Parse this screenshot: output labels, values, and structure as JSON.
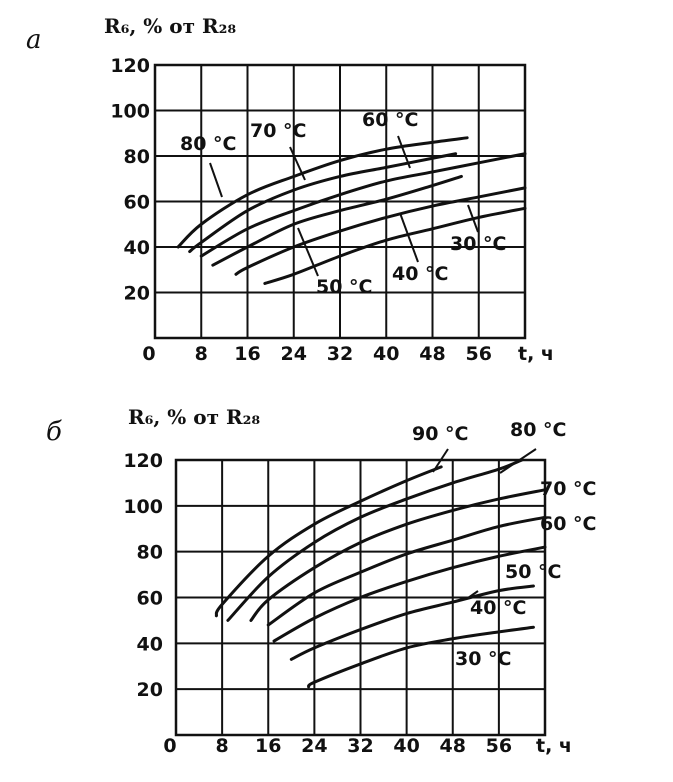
{
  "chart_data": [
    {
      "panel_label": "а",
      "type": "line",
      "title": "R₆, % от R₂₈",
      "xlabel": "t, ч",
      "ylabel": "R₆, % от R₂₈",
      "xlim": [
        0,
        64
      ],
      "ylim": [
        0,
        120
      ],
      "x_ticks": [
        0,
        8,
        16,
        24,
        32,
        40,
        48,
        56
      ],
      "y_ticks": [
        20,
        40,
        60,
        80,
        100,
        120
      ],
      "grid": true,
      "series": [
        {
          "name": "80 °C",
          "x": [
            4,
            8,
            16,
            24,
            32,
            40,
            48,
            54
          ],
          "y": [
            40,
            50,
            63,
            71,
            78,
            83,
            86,
            88
          ]
        },
        {
          "name": "70 °C",
          "x": [
            6,
            8,
            16,
            24,
            32,
            40,
            48,
            52
          ],
          "y": [
            38,
            42,
            56,
            65,
            71,
            75,
            79,
            81
          ]
        },
        {
          "name": "60 °C",
          "x": [
            8,
            16,
            24,
            32,
            40,
            48,
            56,
            64
          ],
          "y": [
            36,
            48,
            56,
            63,
            69,
            73,
            77,
            81
          ]
        },
        {
          "name": "50 °C",
          "x": [
            10,
            16,
            24,
            32,
            40,
            48,
            53
          ],
          "y": [
            32,
            40,
            50,
            56,
            61,
            67,
            71
          ]
        },
        {
          "name": "40 °C",
          "x": [
            14,
            16,
            24,
            32,
            40,
            48,
            56,
            64
          ],
          "y": [
            28,
            31,
            40,
            47,
            53,
            58,
            62,
            66
          ]
        },
        {
          "name": "30 °C",
          "x": [
            19,
            24,
            32,
            40,
            48,
            56,
            64
          ],
          "y": [
            24,
            28,
            36,
            43,
            48,
            53,
            57
          ]
        }
      ],
      "annotations": [
        "80 °C",
        "70 °C",
        "60 °C",
        "50 °C",
        "40 °C",
        "30 °C"
      ]
    },
    {
      "panel_label": "б",
      "type": "line",
      "title": "R₆, % от R₂₈",
      "xlabel": "t, ч",
      "ylabel": "R₆, % от R₂₈",
      "xlim": [
        0,
        64
      ],
      "ylim": [
        0,
        120
      ],
      "x_ticks": [
        0,
        8,
        16,
        24,
        32,
        40,
        48,
        56
      ],
      "y_ticks": [
        20,
        40,
        60,
        80,
        100,
        120
      ],
      "grid": true,
      "series": [
        {
          "name": "90 °C",
          "x": [
            7,
            8,
            16,
            24,
            32,
            40,
            46
          ],
          "y": [
            52,
            57,
            78,
            92,
            102,
            111,
            117
          ]
        },
        {
          "name": "80 °C",
          "x": [
            9,
            16,
            24,
            32,
            40,
            48,
            56,
            60
          ],
          "y": [
            50,
            69,
            84,
            95,
            103,
            110,
            116,
            120
          ]
        },
        {
          "name": "70 °C",
          "x": [
            13,
            16,
            24,
            32,
            40,
            48,
            56,
            64
          ],
          "y": [
            50,
            59,
            73,
            84,
            92,
            98,
            103,
            107
          ]
        },
        {
          "name": "60 °C",
          "x": [
            16,
            24,
            32,
            40,
            48,
            56,
            64
          ],
          "y": [
            48,
            62,
            71,
            79,
            85,
            91,
            95
          ]
        },
        {
          "name": "50 °C",
          "x": [
            17,
            24,
            32,
            40,
            48,
            56,
            64
          ],
          "y": [
            41,
            51,
            60,
            67,
            73,
            78,
            82
          ]
        },
        {
          "name": "40 °C",
          "x": [
            20,
            24,
            32,
            40,
            48,
            56,
            62
          ],
          "y": [
            33,
            38,
            46,
            53,
            58,
            63,
            65
          ]
        },
        {
          "name": "30 °C",
          "x": [
            23,
            24,
            32,
            40,
            48,
            56,
            62
          ],
          "y": [
            21,
            23,
            31,
            38,
            42,
            45,
            47
          ]
        }
      ],
      "annotations": [
        "90 °C",
        "80 °C",
        "70 °C",
        "60 °C",
        "50 °C",
        "40 °C",
        "30 °C"
      ]
    }
  ]
}
